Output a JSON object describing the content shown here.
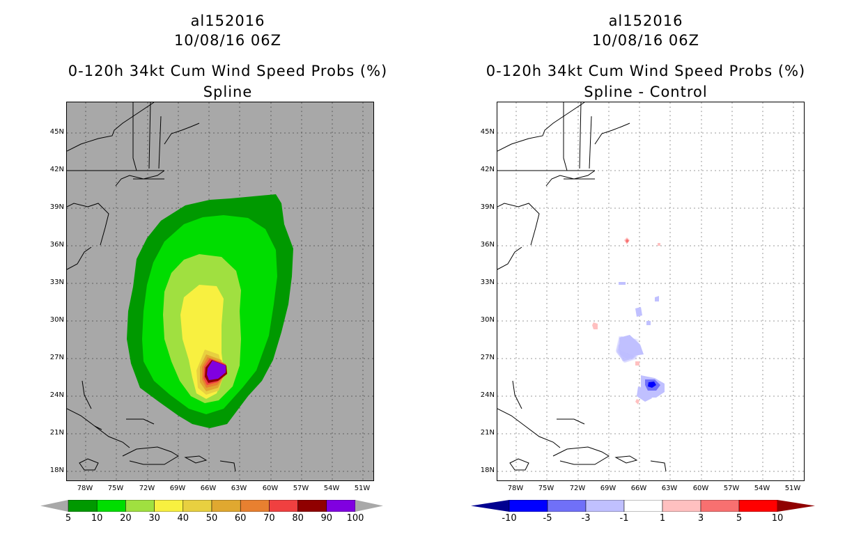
{
  "panels": [
    {
      "storm_id": "al152016",
      "datetime": "10/08/16 06Z",
      "product": "0-120h 34kt Cum Wind Speed Probs (%)",
      "subtitle": "Spline",
      "colorbar_labels": [
        "5",
        "10",
        "20",
        "30",
        "40",
        "50",
        "60",
        "70",
        "80",
        "90",
        "100"
      ],
      "colorbar_colors": [
        "#009900",
        "#00dd00",
        "#a0e040",
        "#f8f040",
        "#e8d040",
        "#e0a830",
        "#e88030",
        "#f04040",
        "#900000",
        "#8000e0"
      ]
    },
    {
      "storm_id": "al152016",
      "datetime": "10/08/16 06Z",
      "product": "0-120h 34kt Cum Wind Speed Probs (%)",
      "subtitle": "Spline - Control",
      "colorbar_labels": [
        "-10",
        "-5",
        "-3",
        "-1",
        "1",
        "3",
        "5",
        "10"
      ],
      "colorbar_colors": [
        "#0000ff",
        "#7070f8",
        "#c0c0ff",
        "#ffffff",
        "#ffc0c0",
        "#f87070",
        "#ff0000"
      ],
      "colorbar_end_colors": [
        "#000090",
        "#900000"
      ]
    }
  ],
  "axes": {
    "lat_labels": [
      "45N",
      "42N",
      "39N",
      "36N",
      "33N",
      "30N",
      "27N",
      "24N",
      "21N",
      "18N"
    ],
    "lon_labels": [
      "78W",
      "75W",
      "72W",
      "69W",
      "66W",
      "63W",
      "60W",
      "57W",
      "54W",
      "51W"
    ]
  }
}
